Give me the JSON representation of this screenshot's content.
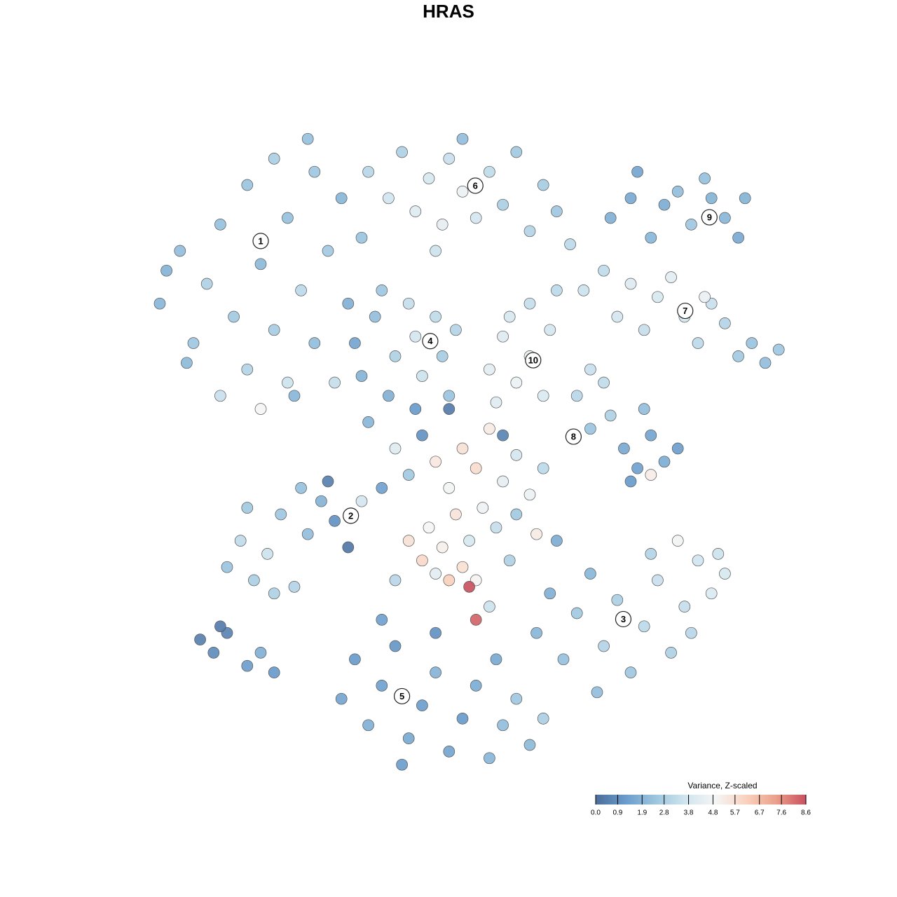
{
  "chart_data": {
    "type": "scatter",
    "title": "HRAS",
    "xlim": [
      0,
      100
    ],
    "ylim": [
      0,
      100
    ],
    "point_stroke": "#555555",
    "series": [
      {
        "x": [
          5,
          8,
          10,
          12,
          14,
          16,
          18,
          18,
          20,
          22,
          22,
          24,
          25,
          26,
          28,
          28,
          30,
          31,
          32,
          33,
          14,
          9,
          20,
          24,
          6,
          35,
          27,
          36,
          39,
          41,
          43,
          45,
          47,
          48,
          50,
          52,
          54,
          56,
          58,
          60,
          62,
          64,
          66,
          50,
          46,
          34,
          35,
          37,
          39,
          40,
          42,
          43,
          44,
          46,
          47,
          48,
          49,
          38,
          72,
          75,
          78,
          80,
          82,
          84,
          87,
          89,
          91,
          92,
          86,
          76,
          68,
          71,
          73,
          75,
          77,
          79,
          81,
          83,
          85,
          87,
          89,
          91,
          93,
          95,
          97,
          86,
          60,
          64,
          54,
          56,
          58,
          60,
          62,
          57,
          63,
          55,
          67,
          69,
          72,
          74,
          76,
          78,
          80,
          82,
          75,
          71,
          77,
          69,
          78,
          40,
          42,
          44,
          46,
          48,
          50,
          52,
          54,
          56,
          58,
          60,
          62,
          45,
          47,
          49,
          51,
          53,
          55,
          57,
          42,
          44,
          46,
          48,
          50,
          52,
          51,
          52,
          54,
          40,
          58,
          61,
          38,
          36,
          43,
          56,
          48,
          15,
          17,
          19,
          21,
          23,
          25,
          27,
          29,
          31,
          33,
          35,
          18,
          22,
          26,
          30,
          61,
          63,
          65,
          67,
          69,
          71,
          73,
          75,
          77,
          79,
          81,
          83,
          85,
          87,
          89,
          88,
          84,
          78,
          70,
          82,
          64,
          32,
          34,
          36,
          38,
          40,
          42,
          44,
          46,
          48,
          50,
          52,
          54,
          56,
          58,
          60,
          55,
          46,
          38,
          62,
          41,
          11,
          13,
          15,
          18,
          20,
          22,
          14
        ],
        "y": [
          72,
          80,
          66,
          75,
          84,
          70,
          62,
          90,
          78,
          68,
          94,
          85,
          58,
          74,
          92,
          66,
          80,
          60,
          88,
          72,
          58,
          63,
          56,
          60,
          77,
          82,
          97,
          92,
          88,
          95,
          86,
          91,
          84,
          94,
          89,
          85,
          92,
          87,
          95,
          83,
          90,
          86,
          81,
          97,
          80,
          66,
          61,
          70,
          58,
          64,
          72,
          67,
          61,
          70,
          64,
          58,
          68,
          74,
          85,
          88,
          82,
          87,
          89,
          84,
          88,
          85,
          82,
          88,
          91,
          92,
          74,
          77,
          70,
          75,
          68,
          73,
          76,
          70,
          66,
          72,
          69,
          64,
          66,
          63,
          65,
          73,
          72,
          74,
          62,
          67,
          60,
          64,
          58,
          70,
          68,
          57,
          58,
          53,
          55,
          50,
          47,
          52,
          48,
          50,
          45,
          60,
          56,
          62,
          46,
          50,
          46,
          52,
          48,
          44,
          50,
          47,
          53,
          45,
          49,
          43,
          47,
          38,
          35,
          40,
          36,
          41,
          38,
          33,
          36,
          33,
          31,
          30,
          32,
          30,
          29,
          24,
          26,
          30,
          40,
          37,
          44,
          54,
          56,
          52,
          56,
          32,
          36,
          30,
          34,
          40,
          29,
          37,
          42,
          39,
          35,
          42,
          41,
          28,
          44,
          45,
          22,
          28,
          18,
          25,
          31,
          20,
          27,
          16,
          23,
          30,
          19,
          26,
          33,
          28,
          31,
          34,
          22,
          34,
          13,
          36,
          36,
          12,
          18,
          8,
          14,
          20,
          6,
          11,
          16,
          4,
          9,
          14,
          3,
          8,
          12,
          5,
          18,
          22,
          24,
          9,
          2,
          21,
          19,
          22,
          17,
          19,
          16,
          23
        ],
        "values": [
          2.0,
          2.2,
          2.5,
          2.9,
          2.3,
          2.6,
          3.0,
          2.4,
          2.1,
          2.7,
          2.8,
          2.3,
          2.0,
          3.2,
          2.5,
          2.2,
          2.6,
          3.4,
          2.0,
          1.8,
          3.5,
          2.1,
          4.9,
          3.6,
          1.9,
          2.4,
          2.3,
          3.1,
          3.7,
          2.9,
          4.2,
          3.9,
          4.4,
          3.5,
          4.6,
          3.8,
          3.3,
          2.8,
          2.6,
          3.0,
          2.7,
          2.5,
          3.2,
          2.2,
          3.6,
          1.5,
          1.9,
          2.2,
          1.8,
          2.9,
          3.4,
          3.8,
          3.6,
          3.3,
          2.7,
          2.4,
          3.0,
          2.5,
          1.8,
          1.6,
          2.0,
          1.7,
          2.2,
          2.5,
          1.9,
          2.0,
          1.6,
          1.9,
          2.3,
          1.5,
          3.6,
          3.3,
          3.8,
          4.1,
          3.4,
          3.9,
          4.3,
          3.7,
          3.2,
          3.5,
          3.0,
          2.6,
          2.4,
          2.2,
          2.5,
          4.5,
          3.4,
          3.2,
          4.3,
          4.1,
          4.6,
          4.4,
          4.0,
          3.9,
          3.8,
          4.2,
          3.1,
          2.4,
          2.9,
          1.6,
          1.4,
          1.5,
          1.7,
          1.3,
          1.2,
          3.3,
          2.2,
          3.5,
          5.2,
          4.2,
          2.6,
          1.0,
          5.4,
          4.8,
          5.6,
          5.8,
          5.3,
          4.4,
          3.8,
          4.6,
          3.2,
          4.9,
          5.1,
          5.5,
          3.9,
          4.7,
          3.4,
          2.9,
          5.6,
          5.9,
          4.3,
          6.2,
          5.7,
          5.0,
          8.6,
          8.3,
          3.6,
          3.1,
          2.6,
          5.3,
          1.4,
          2.0,
          1.2,
          0.6,
          0.4,
          2.4,
          3.3,
          2.8,
          3.6,
          2.5,
          3.0,
          2.2,
          1.9,
          1.0,
          0.3,
          3.8,
          2.6,
          2.9,
          2.3,
          0.5,
          2.0,
          1.8,
          2.3,
          2.6,
          2.0,
          3.0,
          2.8,
          2.5,
          3.2,
          3.5,
          2.9,
          3.4,
          3.7,
          4.0,
          3.9,
          3.6,
          3.1,
          3.0,
          2.2,
          4.8,
          1.7,
          1.5,
          1.2,
          1.8,
          1.4,
          1.1,
          1.6,
          1.3,
          1.9,
          1.5,
          1.2,
          1.7,
          2.0,
          2.2,
          2.5,
          2.1,
          1.6,
          1.0,
          1.4,
          2.8,
          1.3,
          0.5,
          0.8,
          0.6,
          1.3,
          1.8,
          1.2,
          0.4
        ]
      }
    ],
    "annotations": [
      {
        "label": "1",
        "x": 20,
        "y": 81.5
      },
      {
        "label": "2",
        "x": 33.4,
        "y": 39.8
      },
      {
        "label": "3",
        "x": 73.9,
        "y": 24.1
      },
      {
        "label": "4",
        "x": 45.2,
        "y": 66.3
      },
      {
        "label": "5",
        "x": 41,
        "y": 12.4
      },
      {
        "label": "6",
        "x": 51.9,
        "y": 89.9
      },
      {
        "label": "7",
        "x": 83.1,
        "y": 70.9
      },
      {
        "label": "8",
        "x": 66.5,
        "y": 51.8
      },
      {
        "label": "9",
        "x": 86.7,
        "y": 85.1
      },
      {
        "label": "10",
        "x": 60.5,
        "y": 63.4
      }
    ],
    "colorbar": {
      "title": "Variance, Z-scaled",
      "range": [
        0,
        8.6
      ],
      "colors": [
        "#4b6d9a",
        "#6a9ccc",
        "#9cc6df",
        "#d1e5ef",
        "#f5f5f5",
        "#f9d2be",
        "#eba08a",
        "#c9505f"
      ],
      "ticks": [
        {
          "value": 0,
          "label": "0.0"
        },
        0.9,
        1.9,
        2.8,
        3.8,
        4.8,
        5.7,
        6.7,
        7.6,
        8.6
      ]
    }
  }
}
